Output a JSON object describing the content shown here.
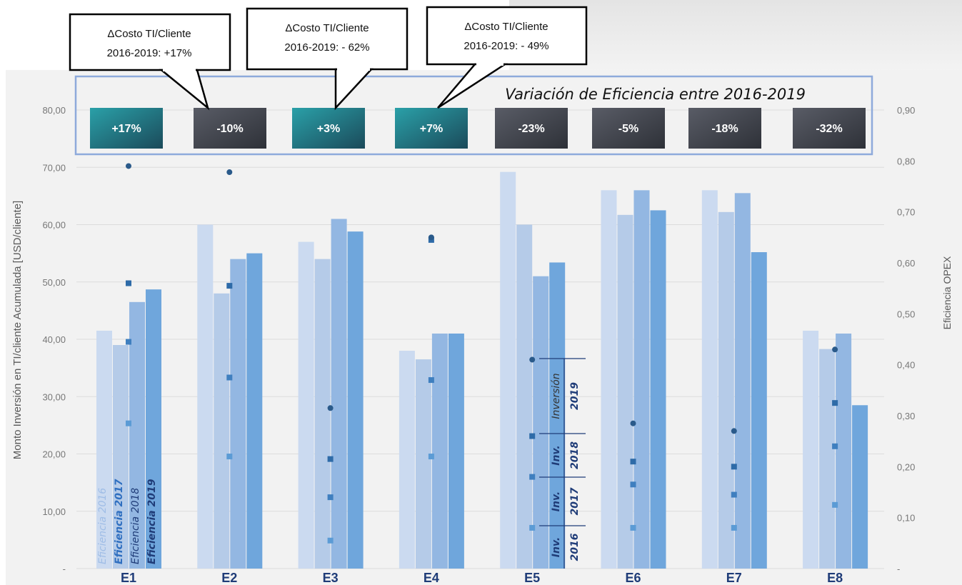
{
  "chart_data": {
    "type": "bar",
    "categories": [
      "E1",
      "E2",
      "E3",
      "E4",
      "E5",
      "E6",
      "E7",
      "E8"
    ],
    "series": [
      {
        "name": "2016",
        "values": [
          41.5,
          60.0,
          57.0,
          38.0,
          69.2,
          66.0,
          66.0,
          41.5
        ]
      },
      {
        "name": "2017",
        "values": [
          39.0,
          48.0,
          54.0,
          36.5,
          60.0,
          61.7,
          62.2,
          38.3
        ]
      },
      {
        "name": "2018",
        "values": [
          46.5,
          54.0,
          61.0,
          41.0,
          51.0,
          66.0,
          65.5,
          41.0
        ]
      },
      {
        "name": "2019",
        "values": [
          48.7,
          55.0,
          58.8,
          41.0,
          53.4,
          62.5,
          55.2,
          28.5
        ]
      }
    ],
    "efficiency_points": [
      {
        "category": "E1",
        "values": [
          0.285,
          0.445,
          0.56,
          0.79
        ]
      },
      {
        "category": "E2",
        "values": [
          0.22,
          0.375,
          0.555,
          0.778
        ]
      },
      {
        "category": "E3",
        "values": [
          0.055,
          0.14,
          0.215,
          0.315
        ]
      },
      {
        "category": "E4",
        "values": [
          0.22,
          0.37,
          0.645,
          0.65
        ]
      },
      {
        "category": "E5",
        "values": [
          0.08,
          0.18,
          0.26,
          0.41
        ]
      },
      {
        "category": "E6",
        "values": [
          0.08,
          0.165,
          0.21,
          0.285
        ]
      },
      {
        "category": "E7",
        "values": [
          0.08,
          0.145,
          0.2,
          0.27
        ]
      },
      {
        "category": "E8",
        "values": [
          0.125,
          0.24,
          0.325,
          0.43
        ]
      }
    ],
    "ylabel": "Monto Inversión en TI/cliente Acumulada [USD/cliente]",
    "y2label": "Eficiencia OPEX",
    "ylim": [
      0,
      80
    ],
    "y2lim": [
      0,
      0.9
    ],
    "yticks": [
      "-",
      "10,00",
      "20,00",
      "30,00",
      "40,00",
      "50,00",
      "60,00",
      "70,00",
      "80,00"
    ],
    "y2ticks": [
      "-",
      "0,10",
      "0,20",
      "0,30",
      "0,40",
      "0,50",
      "0,60",
      "0,70",
      "0,80",
      "0,90"
    ],
    "grid": true
  },
  "variation": {
    "title": "Variación de Eficiencia entre 2016-2019",
    "boxes": [
      {
        "label": "+17%",
        "positive": true
      },
      {
        "label": "-10%",
        "positive": false
      },
      {
        "label": "+3%",
        "positive": true
      },
      {
        "label": "+7%",
        "positive": true
      },
      {
        "label": "-23%",
        "positive": false
      },
      {
        "label": "-5%",
        "positive": false
      },
      {
        "label": "-18%",
        "positive": false
      },
      {
        "label": "-32%",
        "positive": false
      }
    ]
  },
  "callouts": [
    {
      "line1": "ΔCosto TI/Cliente",
      "line2": "2016-2019: +17%"
    },
    {
      "line1": "ΔCosto TI/Cliente",
      "line2": "2016-2019: - 62%"
    },
    {
      "line1": "ΔCosto TI/Cliente",
      "line2": "2016-2019: - 49%"
    }
  ],
  "e1_labels": [
    "Eficiencia 2016",
    "Eficiencia 2017",
    "Eficiencia 2018",
    "Eficiencia 2019"
  ],
  "e5_labels": [
    {
      "a": "Inv.",
      "b": "2016"
    },
    {
      "a": "Inv.",
      "b": "2017"
    },
    {
      "a": "Inv.",
      "b": "2018"
    },
    {
      "a": "Inversión",
      "b": "2019"
    }
  ],
  "colors": {
    "bar2016": "#cbdaf0",
    "bar2017": "#b5cbe8",
    "bar2018": "#93b7e2",
    "bar2019": "#6fa6dc",
    "dot2016": "#5b9bd5",
    "dot2017": "#3f7fbf",
    "dot2018": "#2e6ba8",
    "dot2019": "#2a5a8a",
    "positive_start": "#2aa0a8",
    "positive_end": "#1b4a5a",
    "negative_start": "#595c66",
    "negative_end": "#2e3138",
    "category_label": "#1f3c78",
    "box_border": "#8eaadb",
    "grid": "#dcdcdc"
  }
}
